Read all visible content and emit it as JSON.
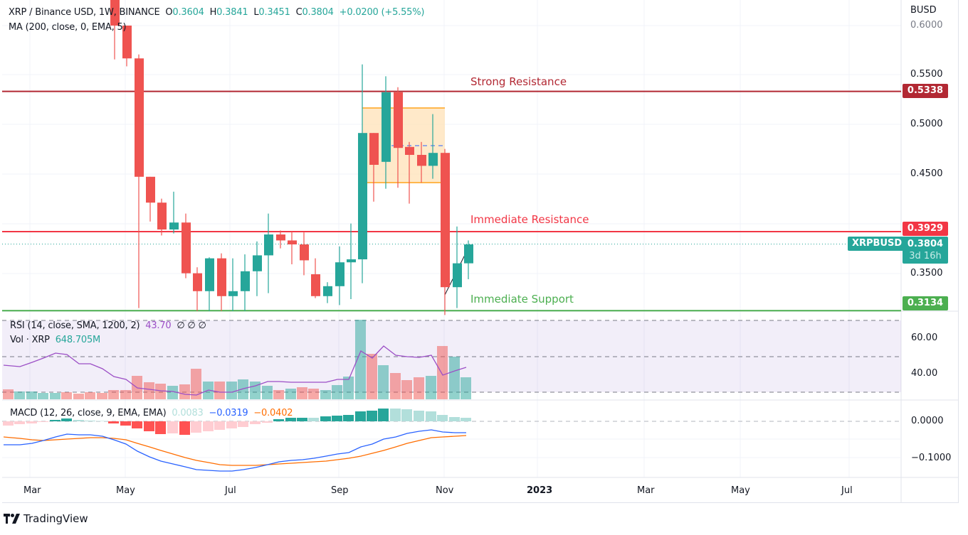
{
  "header": {
    "symbol_line": "XRP / Binance USD, 1W, BINANCE",
    "open_label": "O",
    "open": "0.3604",
    "high_label": "H",
    "high": "0.3841",
    "low_label": "L",
    "low": "0.3451",
    "close_label": "C",
    "close": "0.3804",
    "change": "+0.0200 (+5.55%)",
    "ma_line": "MA (200, close, 0, EMA, 5)"
  },
  "price_axis": {
    "currency": "BUSD",
    "ticks": [
      "0.6000",
      "0.5500",
      "0.5000",
      "0.4500",
      "0.3500"
    ],
    "tags": {
      "strong_resistance": "0.5338",
      "immediate_resistance": "0.3929",
      "current_symbol": "XRPBUSD",
      "current_price": "0.3804",
      "countdown": "3d 16h",
      "immediate_support": "0.3134"
    }
  },
  "annotations": {
    "strong_resistance": "Strong Resistance",
    "immediate_resistance": "Immediate Resistance",
    "immediate_support": "Immediate Support"
  },
  "rsi_panel": {
    "title": "RSI (14, close, SMA, 1200, 2)",
    "value": "43.70",
    "extras": "∅ ∅ ∅",
    "vol_label": "Vol · XRP",
    "vol_value": "648.705M",
    "ticks": [
      "60.00",
      "40.00"
    ]
  },
  "macd_panel": {
    "title": "MACD (12, 26, close, 9, EMA, EMA)",
    "hist": "0.0083",
    "macd": "−0.0319",
    "signal": "−0.0402",
    "ticks": [
      "0.0000",
      "−0.1000"
    ]
  },
  "time_axis": {
    "labels": [
      "Mar",
      "May",
      "Jul",
      "Sep",
      "Nov",
      "2023",
      "Mar",
      "May",
      "Jul"
    ]
  },
  "footer": {
    "brand": "TradingView"
  },
  "colors": {
    "up": "#26a69a",
    "down": "#ef5350",
    "strong_resistance": "#b22833",
    "immediate_resistance": "#f23645",
    "support": "#4caf50",
    "rsi": "#9c4fc6",
    "macd": "#2962ff",
    "signal": "#ff6d00"
  },
  "chart_data": {
    "type": "candlestick",
    "title": "XRP / Binance USD, 1W, BINANCE",
    "xlabel": "",
    "ylabel": "BUSD",
    "ylim": [
      0.305,
      0.625
    ],
    "x_ticks": [
      "Mar",
      "May",
      "Jul",
      "Sep",
      "Nov",
      "2023",
      "Mar",
      "May",
      "Jul"
    ],
    "y_ticks": [
      0.35,
      0.45,
      0.5,
      0.55,
      0.6
    ],
    "horizontal_levels": [
      {
        "name": "Strong Resistance",
        "value": 0.5338
      },
      {
        "name": "Immediate Resistance",
        "value": 0.3929
      },
      {
        "name": "Immediate Support",
        "value": 0.3134
      }
    ],
    "candles": [
      {
        "x": 161,
        "o": 0.64,
        "h": 0.66,
        "l": 0.566,
        "c": 0.6
      },
      {
        "x": 178,
        "o": 0.6,
        "h": 0.6,
        "l": 0.559,
        "c": 0.567
      },
      {
        "x": 195,
        "o": 0.567,
        "h": 0.571,
        "l": 0.316,
        "c": 0.448
      },
      {
        "x": 211,
        "o": 0.448,
        "h": 0.448,
        "l": 0.403,
        "c": 0.422
      },
      {
        "x": 227,
        "o": 0.422,
        "h": 0.426,
        "l": 0.389,
        "c": 0.395
      },
      {
        "x": 244,
        "o": 0.395,
        "h": 0.433,
        "l": 0.391,
        "c": 0.402
      },
      {
        "x": 261,
        "o": 0.402,
        "h": 0.411,
        "l": 0.346,
        "c": 0.351
      },
      {
        "x": 277,
        "o": 0.351,
        "h": 0.357,
        "l": 0.313,
        "c": 0.333
      },
      {
        "x": 294,
        "o": 0.333,
        "h": 0.367,
        "l": 0.313,
        "c": 0.366
      },
      {
        "x": 311,
        "o": 0.366,
        "h": 0.371,
        "l": 0.313,
        "c": 0.328
      },
      {
        "x": 327,
        "o": 0.328,
        "h": 0.366,
        "l": 0.313,
        "c": 0.333
      },
      {
        "x": 344,
        "o": 0.333,
        "h": 0.37,
        "l": 0.313,
        "c": 0.353
      },
      {
        "x": 361,
        "o": 0.353,
        "h": 0.383,
        "l": 0.328,
        "c": 0.369
      },
      {
        "x": 377,
        "o": 0.369,
        "h": 0.411,
        "l": 0.331,
        "c": 0.39
      },
      {
        "x": 394,
        "o": 0.39,
        "h": 0.394,
        "l": 0.376,
        "c": 0.384
      },
      {
        "x": 410,
        "o": 0.384,
        "h": 0.393,
        "l": 0.36,
        "c": 0.38
      },
      {
        "x": 427,
        "o": 0.38,
        "h": 0.392,
        "l": 0.349,
        "c": 0.364
      },
      {
        "x": 443,
        "o": 0.35,
        "h": 0.366,
        "l": 0.326,
        "c": 0.328
      },
      {
        "x": 460,
        "o": 0.328,
        "h": 0.342,
        "l": 0.321,
        "c": 0.338
      },
      {
        "x": 477,
        "o": 0.338,
        "h": 0.378,
        "l": 0.319,
        "c": 0.362
      },
      {
        "x": 493,
        "o": 0.362,
        "h": 0.401,
        "l": 0.325,
        "c": 0.365
      },
      {
        "x": 509,
        "o": 0.365,
        "h": 0.561,
        "l": 0.341,
        "c": 0.492
      },
      {
        "x": 525,
        "o": 0.492,
        "h": 0.465,
        "l": 0.423,
        "c": 0.46
      },
      {
        "x": 542,
        "o": 0.463,
        "h": 0.549,
        "l": 0.436,
        "c": 0.533
      },
      {
        "x": 559,
        "o": 0.533,
        "h": 0.538,
        "l": 0.437,
        "c": 0.477
      },
      {
        "x": 575,
        "o": 0.478,
        "h": 0.483,
        "l": 0.421,
        "c": 0.47
      },
      {
        "x": 592,
        "o": 0.47,
        "h": 0.483,
        "l": 0.442,
        "c": 0.459
      },
      {
        "x": 608,
        "o": 0.459,
        "h": 0.511,
        "l": 0.446,
        "c": 0.472
      },
      {
        "x": 625,
        "o": 0.472,
        "h": 0.476,
        "l": 0.309,
        "c": 0.337
      },
      {
        "x": 642,
        "o": 0.337,
        "h": 0.398,
        "l": 0.316,
        "c": 0.361
      },
      {
        "x": 658,
        "o": 0.361,
        "h": 0.384,
        "l": 0.345,
        "c": 0.38
      }
    ],
    "volume": [
      {
        "x": 12,
        "v": 14,
        "up": false
      },
      {
        "x": 28,
        "v": 11,
        "up": true
      },
      {
        "x": 45,
        "v": 11,
        "up": true
      },
      {
        "x": 61,
        "v": 9,
        "up": true
      },
      {
        "x": 78,
        "v": 9,
        "up": true
      },
      {
        "x": 94,
        "v": 10,
        "up": false
      },
      {
        "x": 111,
        "v": 8,
        "up": false
      },
      {
        "x": 127,
        "v": 10,
        "up": false
      },
      {
        "x": 144,
        "v": 9,
        "up": false
      },
      {
        "x": 160,
        "v": 13,
        "up": false
      },
      {
        "x": 177,
        "v": 13,
        "up": false
      },
      {
        "x": 193,
        "v": 33,
        "up": false
      },
      {
        "x": 210,
        "v": 24,
        "up": false
      },
      {
        "x": 226,
        "v": 22,
        "up": false
      },
      {
        "x": 243,
        "v": 19,
        "up": true
      },
      {
        "x": 260,
        "v": 21,
        "up": false
      },
      {
        "x": 276,
        "v": 43,
        "up": false
      },
      {
        "x": 293,
        "v": 25,
        "up": true
      },
      {
        "x": 309,
        "v": 25,
        "up": false
      },
      {
        "x": 326,
        "v": 25,
        "up": true
      },
      {
        "x": 342,
        "v": 28,
        "up": true
      },
      {
        "x": 359,
        "v": 25,
        "up": true
      },
      {
        "x": 376,
        "v": 19,
        "up": true
      },
      {
        "x": 392,
        "v": 13,
        "up": false
      },
      {
        "x": 409,
        "v": 15,
        "up": true
      },
      {
        "x": 425,
        "v": 17,
        "up": false
      },
      {
        "x": 441,
        "v": 15,
        "up": false
      },
      {
        "x": 458,
        "v": 13,
        "up": true
      },
      {
        "x": 474,
        "v": 20,
        "up": true
      },
      {
        "x": 490,
        "v": 32,
        "up": true
      },
      {
        "x": 507,
        "v": 112,
        "up": true
      },
      {
        "x": 523,
        "v": 64,
        "up": false
      },
      {
        "x": 539,
        "v": 48,
        "up": true
      },
      {
        "x": 556,
        "v": 37,
        "up": false
      },
      {
        "x": 572,
        "v": 27,
        "up": false
      },
      {
        "x": 589,
        "v": 31,
        "up": false
      },
      {
        "x": 606,
        "v": 33,
        "up": true
      },
      {
        "x": 622,
        "v": 75,
        "up": false
      },
      {
        "x": 639,
        "v": 60,
        "up": true
      },
      {
        "x": 655,
        "v": 31,
        "up": true
      }
    ],
    "rsi": [
      [
        5,
        514
      ],
      [
        28,
        516
      ],
      [
        45,
        510
      ],
      [
        61,
        504
      ],
      [
        78,
        497
      ],
      [
        94,
        499
      ],
      [
        111,
        512
      ],
      [
        127,
        512
      ],
      [
        144,
        519
      ],
      [
        160,
        530
      ],
      [
        177,
        534
      ],
      [
        193,
        546
      ],
      [
        210,
        548
      ],
      [
        226,
        550
      ],
      [
        243,
        551
      ],
      [
        260,
        555
      ],
      [
        276,
        556
      ],
      [
        293,
        549
      ],
      [
        309,
        552
      ],
      [
        326,
        552
      ],
      [
        342,
        547
      ],
      [
        359,
        543
      ],
      [
        376,
        537
      ],
      [
        392,
        537
      ],
      [
        409,
        538
      ],
      [
        425,
        538
      ],
      [
        441,
        538
      ],
      [
        458,
        538
      ],
      [
        474,
        534
      ],
      [
        490,
        534
      ],
      [
        507,
        494
      ],
      [
        523,
        504
      ],
      [
        539,
        487
      ],
      [
        556,
        500
      ],
      [
        572,
        502
      ],
      [
        589,
        503
      ],
      [
        606,
        500
      ],
      [
        622,
        528
      ],
      [
        639,
        522
      ],
      [
        655,
        517
      ]
    ],
    "macd_hist": [
      {
        "x": 12,
        "v": -6,
        "c": "#ffcdd2"
      },
      {
        "x": 28,
        "v": -4,
        "c": "#ffcdd2"
      },
      {
        "x": 45,
        "v": -3,
        "c": "#ffcdd2"
      },
      {
        "x": 61,
        "v": -1,
        "c": "#ffcdd2"
      },
      {
        "x": 78,
        "v": 2,
        "c": "#26a69a"
      },
      {
        "x": 94,
        "v": 4,
        "c": "#26a69a"
      },
      {
        "x": 111,
        "v": 2,
        "c": "#b2dfdb"
      },
      {
        "x": 127,
        "v": 1,
        "c": "#b2dfdb"
      },
      {
        "x": 144,
        "v": 0.5,
        "c": "#b2dfdb"
      },
      {
        "x": 160,
        "v": -3,
        "c": "#ff5252"
      },
      {
        "x": 177,
        "v": -6,
        "c": "#ff5252"
      },
      {
        "x": 193,
        "v": -10,
        "c": "#ff5252"
      },
      {
        "x": 210,
        "v": -14,
        "c": "#ff5252"
      },
      {
        "x": 226,
        "v": -18,
        "c": "#ff5252"
      },
      {
        "x": 243,
        "v": -17,
        "c": "#ffcdd2"
      },
      {
        "x": 260,
        "v": -19,
        "c": "#ff5252"
      },
      {
        "x": 276,
        "v": -16,
        "c": "#ffcdd2"
      },
      {
        "x": 293,
        "v": -14,
        "c": "#ffcdd2"
      },
      {
        "x": 309,
        "v": -12,
        "c": "#ffcdd2"
      },
      {
        "x": 326,
        "v": -10,
        "c": "#ffcdd2"
      },
      {
        "x": 342,
        "v": -8,
        "c": "#ffcdd2"
      },
      {
        "x": 359,
        "v": -4,
        "c": "#ffcdd2"
      },
      {
        "x": 376,
        "v": -2,
        "c": "#ffcdd2"
      },
      {
        "x": 392,
        "v": 3,
        "c": "#26a69a"
      },
      {
        "x": 409,
        "v": 5,
        "c": "#26a69a"
      },
      {
        "x": 425,
        "v": 5,
        "c": "#26a69a"
      },
      {
        "x": 441,
        "v": 5,
        "c": "#b2dfdb"
      },
      {
        "x": 458,
        "v": 7,
        "c": "#26a69a"
      },
      {
        "x": 474,
        "v": 8,
        "c": "#26a69a"
      },
      {
        "x": 490,
        "v": 9,
        "c": "#26a69a"
      },
      {
        "x": 507,
        "v": 14,
        "c": "#26a69a"
      },
      {
        "x": 523,
        "v": 15,
        "c": "#26a69a"
      },
      {
        "x": 539,
        "v": 18,
        "c": "#26a69a"
      },
      {
        "x": 556,
        "v": 18,
        "c": "#b2dfdb"
      },
      {
        "x": 572,
        "v": 17,
        "c": "#b2dfdb"
      },
      {
        "x": 589,
        "v": 15,
        "c": "#b2dfdb"
      },
      {
        "x": 606,
        "v": 14,
        "c": "#b2dfdb"
      },
      {
        "x": 622,
        "v": 9,
        "c": "#b2dfdb"
      },
      {
        "x": 639,
        "v": 6,
        "c": "#b2dfdb"
      },
      {
        "x": 655,
        "v": 5,
        "c": "#b2dfdb"
      }
    ],
    "macd_line": [
      [
        5,
        626
      ],
      [
        28,
        626
      ],
      [
        45,
        624
      ],
      [
        61,
        620
      ],
      [
        78,
        615
      ],
      [
        94,
        611
      ],
      [
        111,
        612
      ],
      [
        127,
        612
      ],
      [
        144,
        614
      ],
      [
        160,
        619
      ],
      [
        177,
        625
      ],
      [
        193,
        635
      ],
      [
        210,
        643
      ],
      [
        226,
        649
      ],
      [
        243,
        653
      ],
      [
        260,
        657
      ],
      [
        276,
        661
      ],
      [
        293,
        662
      ],
      [
        309,
        663
      ],
      [
        326,
        663
      ],
      [
        342,
        661
      ],
      [
        359,
        658
      ],
      [
        376,
        654
      ],
      [
        392,
        650
      ],
      [
        409,
        648
      ],
      [
        425,
        647
      ],
      [
        441,
        645
      ],
      [
        458,
        642
      ],
      [
        474,
        639
      ],
      [
        490,
        637
      ],
      [
        507,
        629
      ],
      [
        523,
        625
      ],
      [
        539,
        618
      ],
      [
        556,
        615
      ],
      [
        572,
        610
      ],
      [
        589,
        607
      ],
      [
        606,
        605
      ],
      [
        622,
        608
      ],
      [
        639,
        609
      ],
      [
        655,
        609
      ]
    ],
    "signal_line": [
      [
        5,
        615
      ],
      [
        28,
        617
      ],
      [
        45,
        619
      ],
      [
        61,
        620
      ],
      [
        78,
        619
      ],
      [
        94,
        618
      ],
      [
        111,
        617
      ],
      [
        127,
        616
      ],
      [
        144,
        616
      ],
      [
        160,
        617
      ],
      [
        177,
        619
      ],
      [
        193,
        624
      ],
      [
        210,
        629
      ],
      [
        226,
        634
      ],
      [
        243,
        639
      ],
      [
        260,
        644
      ],
      [
        276,
        648
      ],
      [
        293,
        651
      ],
      [
        309,
        654
      ],
      [
        326,
        655
      ],
      [
        342,
        655
      ],
      [
        359,
        655
      ],
      [
        376,
        654
      ],
      [
        392,
        653
      ],
      [
        409,
        652
      ],
      [
        425,
        651
      ],
      [
        441,
        650
      ],
      [
        458,
        649
      ],
      [
        474,
        647
      ],
      [
        490,
        645
      ],
      [
        507,
        642
      ],
      [
        523,
        638
      ],
      [
        539,
        634
      ],
      [
        556,
        629
      ],
      [
        572,
        624
      ],
      [
        589,
        620
      ],
      [
        606,
        616
      ],
      [
        622,
        615
      ],
      [
        639,
        614
      ],
      [
        655,
        613
      ]
    ]
  }
}
